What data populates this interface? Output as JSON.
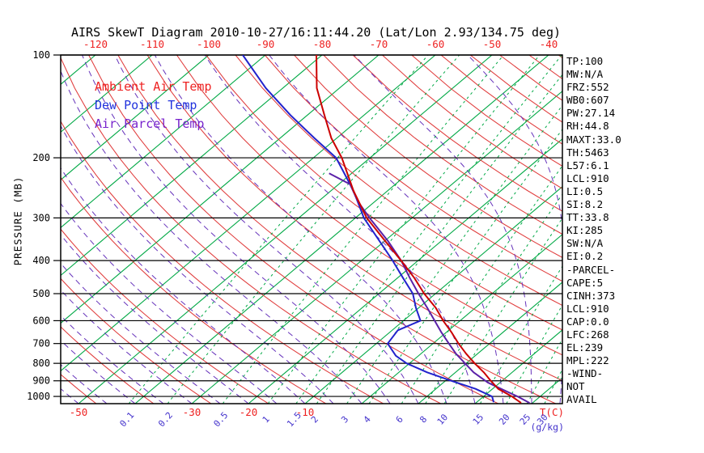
{
  "title": "AIRS SkewT Diagram 2010-10-27/16:11:44.20 (Lat/Lon 2.93/134.75 deg)",
  "legend": [
    {
      "label": "Ambient Air Temp",
      "color": "#ee2222"
    },
    {
      "label": "Dew Point Temp",
      "color": "#2233dd"
    },
    {
      "label": "Air Parcel Temp",
      "color": "#7722cc"
    }
  ],
  "stats": [
    "TP:100",
    "MW:N/A",
    "FRZ:552",
    "WB0:607",
    "PW:27.14",
    "RH:44.8",
    "MAXT:33.0",
    "TH:5463",
    "L57:6.1",
    "LCL:910",
    "LI:0.5",
    "SI:8.2",
    "TT:33.8",
    "KI:285",
    "SW:N/A",
    "EI:0.2",
    "-PARCEL-",
    "CAPE:5",
    "CINH:373",
    "LCL:910",
    "CAP:0.0",
    "LFC:268",
    "EL:239",
    "MPL:222",
    "-WIND-",
    "NOT",
    "AVAIL"
  ],
  "chart_data": {
    "type": "line",
    "variant": "skew-t-log-p",
    "x_axis": {
      "label": "T(C)",
      "top_tick_temps": [
        -120,
        -110,
        -100,
        -90,
        -80,
        -70,
        -60,
        -50,
        -40
      ],
      "bottom_tick_temps": [
        -50,
        -30,
        -20,
        -10
      ],
      "tick_label_color": "#ee2222"
    },
    "y_axis": {
      "label": "PRESSURE (MB)",
      "ticks": [
        100,
        200,
        300,
        400,
        500,
        600,
        700,
        800,
        900,
        1000
      ],
      "scale": "log",
      "range": [
        100,
        1050
      ]
    },
    "mixing_ratio": {
      "unit_label": "(g/kg)",
      "values": [
        0.1,
        0.2,
        0.5,
        1,
        1.5,
        2,
        3,
        4,
        6,
        8,
        10,
        15,
        20,
        25,
        30
      ],
      "line_color": "#00a845",
      "label_color": "#4433cc"
    },
    "isotherms": {
      "color": "#00a845",
      "min": -130,
      "max": 40,
      "step": 10
    },
    "dry_adiabats": {
      "color": "#e03c3c",
      "theta_min": -50,
      "theta_max": 180,
      "step": 10
    },
    "moist_adiabats": {
      "color": "#6633bb",
      "tw_min": -55,
      "tw_max": 40,
      "step": 5
    },
    "series": [
      {
        "name": "Ambient Air Temp",
        "color": "#cc0000",
        "points": [
          [
            100,
            -81
          ],
          [
            125,
            -74
          ],
          [
            150,
            -67
          ],
          [
            175,
            -61
          ],
          [
            200,
            -55
          ],
          [
            250,
            -46
          ],
          [
            300,
            -38
          ],
          [
            350,
            -30
          ],
          [
            400,
            -23
          ],
          [
            450,
            -17
          ],
          [
            500,
            -12
          ],
          [
            550,
            -7
          ],
          [
            600,
            -3
          ],
          [
            650,
            1
          ],
          [
            700,
            4.5
          ],
          [
            750,
            8
          ],
          [
            800,
            11.5
          ],
          [
            850,
            15
          ],
          [
            900,
            18
          ],
          [
            950,
            21
          ],
          [
            1000,
            25
          ],
          [
            1045,
            28
          ]
        ]
      },
      {
        "name": "Dew Point Temp",
        "color": "#2222cc",
        "points": [
          [
            100,
            -94
          ],
          [
            125,
            -83
          ],
          [
            150,
            -73
          ],
          [
            175,
            -64
          ],
          [
            200,
            -56
          ],
          [
            250,
            -46
          ],
          [
            300,
            -38.5
          ],
          [
            350,
            -31
          ],
          [
            400,
            -24.5
          ],
          [
            450,
            -19
          ],
          [
            500,
            -14
          ],
          [
            550,
            -10.5
          ],
          [
            600,
            -7
          ],
          [
            640,
            -9
          ],
          [
            700,
            -8
          ],
          [
            760,
            -4
          ],
          [
            800,
            -0.5
          ],
          [
            850,
            5
          ],
          [
            900,
            11
          ],
          [
            950,
            17
          ],
          [
            1000,
            21.5
          ],
          [
            1040,
            23
          ]
        ]
      },
      {
        "name": "Air Parcel Temp",
        "color": "#5b21a8",
        "points": [
          [
            222,
            -54
          ],
          [
            239,
            -48
          ],
          [
            268,
            -43.1
          ],
          [
            300,
            -37.5
          ],
          [
            350,
            -29.5
          ],
          [
            400,
            -23
          ],
          [
            450,
            -17.8
          ],
          [
            500,
            -13
          ],
          [
            550,
            -8.5
          ],
          [
            600,
            -4.5
          ],
          [
            650,
            -0.8
          ],
          [
            700,
            2.8
          ],
          [
            750,
            6.2
          ],
          [
            800,
            9.8
          ],
          [
            850,
            13.2
          ],
          [
            910,
            17.8
          ],
          [
            950,
            21.5
          ],
          [
            1000,
            26
          ],
          [
            1045,
            29.5
          ]
        ]
      }
    ]
  }
}
